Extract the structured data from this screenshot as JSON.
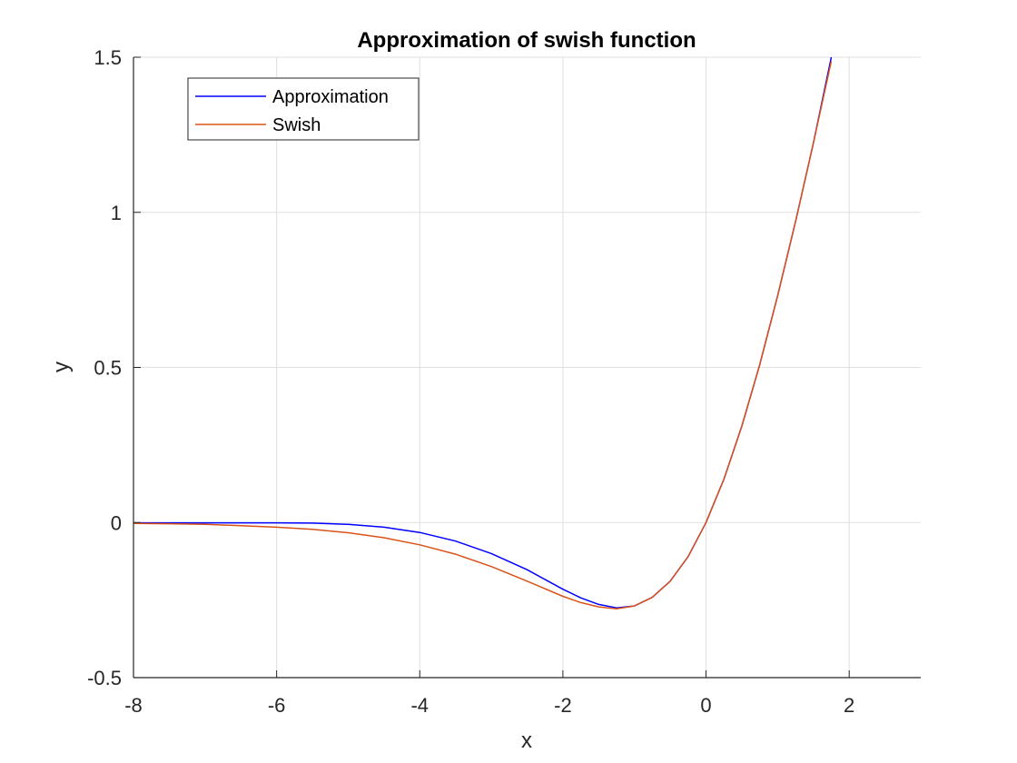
{
  "chart_data": {
    "type": "line",
    "title": "Approximation of swish function",
    "xlabel": "x",
    "ylabel": "y",
    "xlim": [
      -8,
      3
    ],
    "ylim": [
      -0.5,
      1.5
    ],
    "xticks": [
      -8,
      -6,
      -4,
      -2,
      0,
      2
    ],
    "yticks": [
      -0.5,
      0,
      0.5,
      1,
      1.5
    ],
    "grid": true,
    "legend_location": "top-left",
    "series": [
      {
        "name": "Approximation",
        "color": "#0000ff",
        "x": [
          -8,
          -7.5,
          -7,
          -6.5,
          -6,
          -5.5,
          -5,
          -4.5,
          -4,
          -3.5,
          -3,
          -2.5,
          -2,
          -1.75,
          -1.5,
          -1.25,
          -1,
          -0.75,
          -0.5,
          -0.25,
          0,
          0.25,
          0.5,
          0.75,
          1,
          1.25,
          1.5,
          1.75
        ],
        "y": [
          -0.001,
          -0.001,
          -0.001,
          -0.001,
          -0.001,
          -0.002,
          -0.006,
          -0.015,
          -0.032,
          -0.06,
          -0.1,
          -0.152,
          -0.215,
          -0.243,
          -0.264,
          -0.275,
          -0.269,
          -0.241,
          -0.189,
          -0.11,
          0.0,
          0.14,
          0.311,
          0.509,
          0.731,
          0.97,
          1.224,
          1.5
        ]
      },
      {
        "name": "Swish",
        "color": "#d95319",
        "x": [
          -8,
          -7.5,
          -7,
          -6.5,
          -6,
          -5.5,
          -5,
          -4.5,
          -4,
          -3.5,
          -3,
          -2.5,
          -2,
          -1.75,
          -1.5,
          -1.25,
          -1,
          -0.75,
          -0.5,
          -0.25,
          0,
          0.25,
          0.5,
          0.75,
          1,
          1.25,
          1.5,
          1.75
        ],
        "y": [
          -0.003,
          -0.004,
          -0.006,
          -0.01,
          -0.015,
          -0.022,
          -0.033,
          -0.049,
          -0.072,
          -0.102,
          -0.142,
          -0.189,
          -0.238,
          -0.258,
          -0.272,
          -0.278,
          -0.269,
          -0.241,
          -0.189,
          -0.11,
          0.0,
          0.14,
          0.311,
          0.509,
          0.731,
          0.97,
          1.224,
          1.487
        ]
      }
    ]
  }
}
